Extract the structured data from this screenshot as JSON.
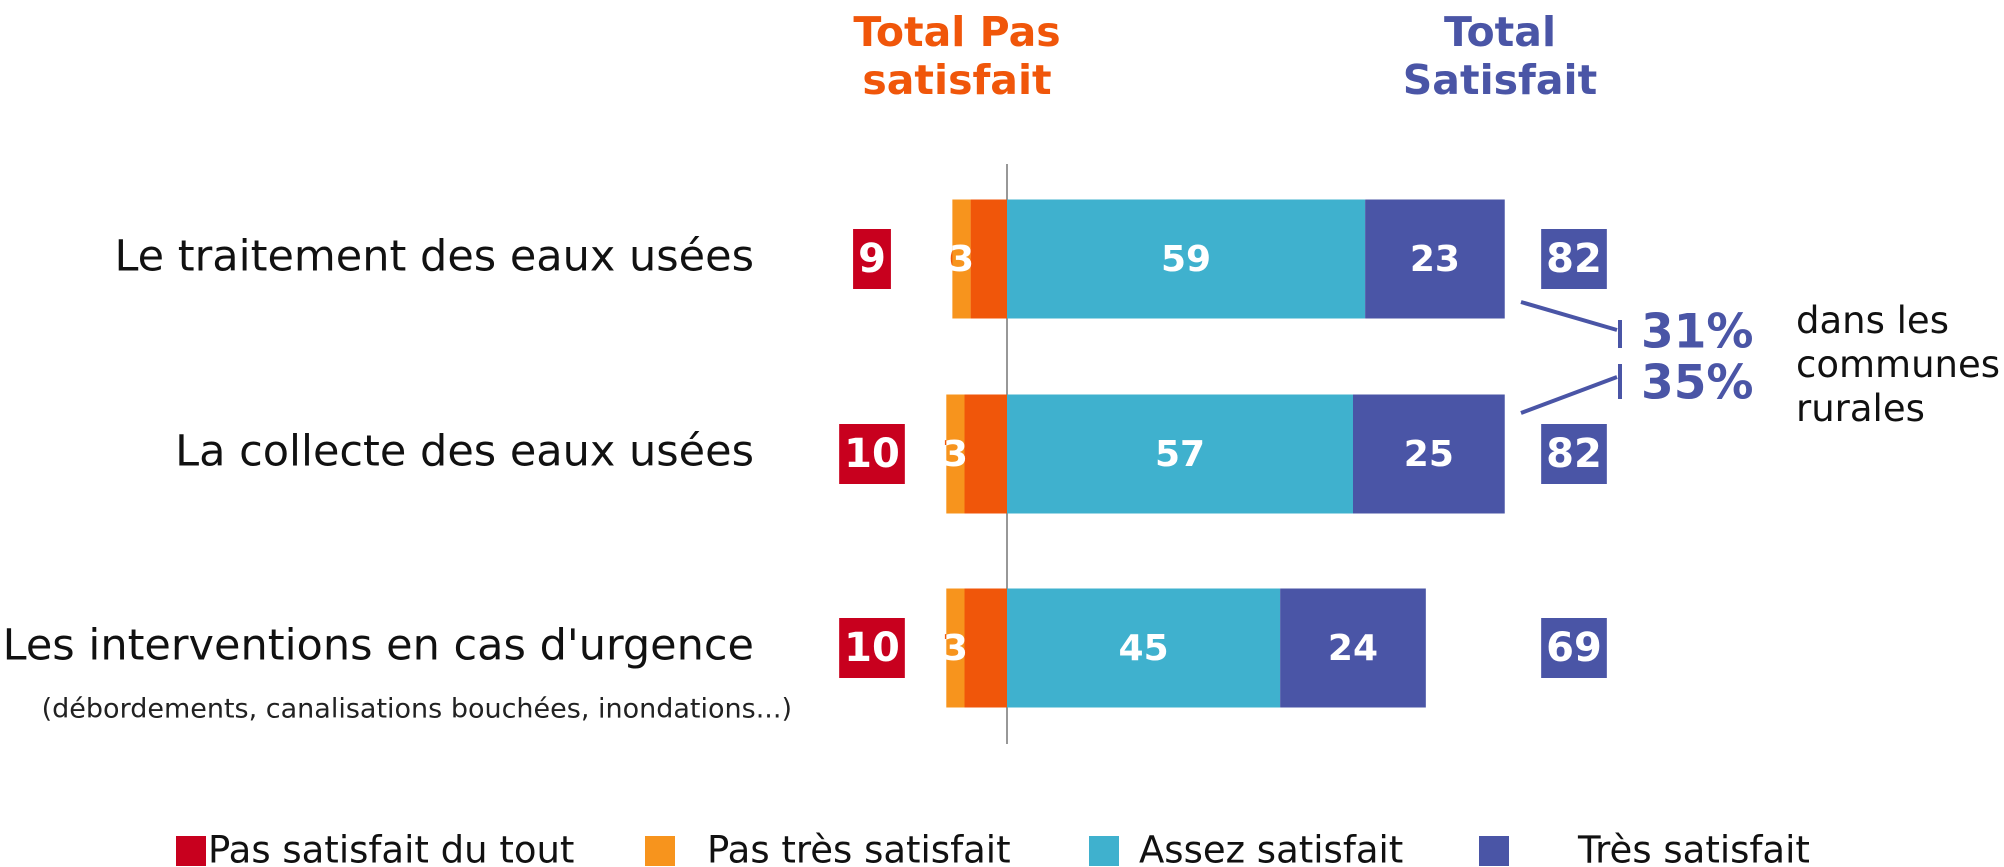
{
  "chart_data": {
    "type": "diverging_bar",
    "categories": [
      "Le traitement des eaux usées",
      "La collecte des eaux usées",
      "Les interventions en cas d'urgence"
    ],
    "category_notes": [
      null,
      null,
      "(débordements, canalisations bouchées, inondations...)"
    ],
    "series": [
      {
        "name": "Pas satisfait du tout",
        "color": "#f0560a",
        "legend_color": "#c8001e",
        "side": "negative",
        "values": [
          6,
          7,
          7
        ]
      },
      {
        "name": "Pas très satisfait",
        "color": "#f7941d",
        "legend_color": "#f7941d",
        "side": "negative",
        "values": [
          3,
          3,
          3
        ]
      },
      {
        "name": "Assez satisfait",
        "color": "#3fb1ce",
        "legend_color": "#3fb1ce",
        "side": "positive",
        "values": [
          59,
          57,
          45
        ]
      },
      {
        "name": "Très satisfait",
        "color": "#4a55a6",
        "legend_color": "#4a55a6",
        "side": "positive",
        "values": [
          23,
          25,
          24
        ]
      }
    ],
    "totals": [
      {
        "name": "Total Pas satisfait",
        "color": "#c8001e",
        "header_color": "#f0560a",
        "values": [
          9,
          10,
          10
        ]
      },
      {
        "name": "Total Satisfait",
        "color": "#4a55a6",
        "header_color": "#4a55a6",
        "values": [
          82,
          82,
          69
        ]
      }
    ],
    "annotations": [
      {
        "label": "31%",
        "row": 0
      },
      {
        "label": "35%",
        "row": 1
      },
      {
        "text": "dans les communes rurales"
      }
    ]
  }
}
